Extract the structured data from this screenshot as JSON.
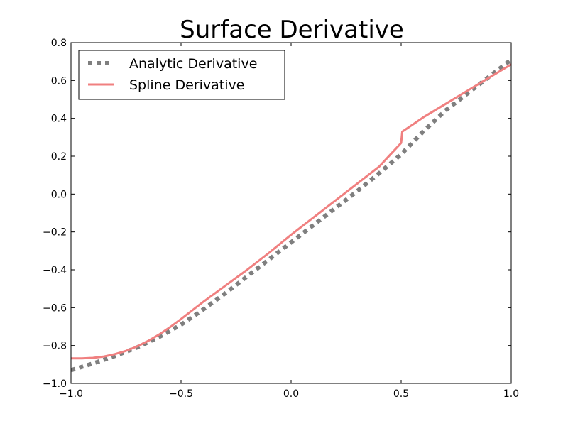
{
  "chart_data": {
    "type": "line",
    "title": "Surface Derivative",
    "xlabel": "",
    "ylabel": "",
    "xlim": [
      -1.0,
      1.0
    ],
    "ylim": [
      -1.0,
      0.8
    ],
    "xticks": [
      -1.0,
      -0.5,
      0.0,
      0.5,
      1.0
    ],
    "xtick_labels": [
      "−1.0",
      "−0.5",
      "0.0",
      "0.5",
      "1.0"
    ],
    "yticks": [
      -1.0,
      -0.8,
      -0.6,
      -0.4,
      -0.2,
      0.0,
      0.2,
      0.4,
      0.6,
      0.8
    ],
    "ytick_labels": [
      "−1.0",
      "−0.8",
      "−0.6",
      "−0.4",
      "−0.2",
      "0.0",
      "0.2",
      "0.4",
      "0.6",
      "0.8"
    ],
    "grid": false,
    "legend_position": "top-left",
    "series": [
      {
        "name": "Analytic Derivative",
        "color": "#7f7f7f",
        "style": "dotted",
        "x": [
          -1.0,
          -0.9,
          -0.8,
          -0.7,
          -0.6,
          -0.5,
          -0.4,
          -0.3,
          -0.2,
          -0.1,
          0.0,
          0.1,
          0.2,
          0.3,
          0.4,
          0.5,
          0.6,
          0.7,
          0.8,
          0.9,
          1.0
        ],
        "y": [
          -0.93,
          -0.895,
          -0.855,
          -0.81,
          -0.755,
          -0.69,
          -0.61,
          -0.525,
          -0.435,
          -0.345,
          -0.255,
          -0.165,
          -0.075,
          0.015,
          0.11,
          0.21,
          0.33,
          0.44,
          0.53,
          0.62,
          0.71
        ]
      },
      {
        "name": "Spline Derivative",
        "color": "#f08080",
        "style": "solid",
        "x": [
          -1.0,
          -0.95,
          -0.9,
          -0.85,
          -0.8,
          -0.75,
          -0.7,
          -0.65,
          -0.6,
          -0.55,
          -0.5,
          -0.4,
          -0.3,
          -0.2,
          -0.1,
          0.0,
          0.1,
          0.2,
          0.3,
          0.4,
          0.5,
          0.505,
          0.55,
          0.6,
          0.7,
          0.8,
          0.9,
          1.0
        ],
        "y": [
          -0.868,
          -0.868,
          -0.865,
          -0.858,
          -0.845,
          -0.828,
          -0.805,
          -0.776,
          -0.742,
          -0.703,
          -0.66,
          -0.57,
          -0.485,
          -0.4,
          -0.31,
          -0.215,
          -0.125,
          -0.035,
          0.055,
          0.145,
          0.27,
          0.33,
          0.365,
          0.405,
          0.475,
          0.545,
          0.615,
          0.685
        ]
      }
    ]
  }
}
